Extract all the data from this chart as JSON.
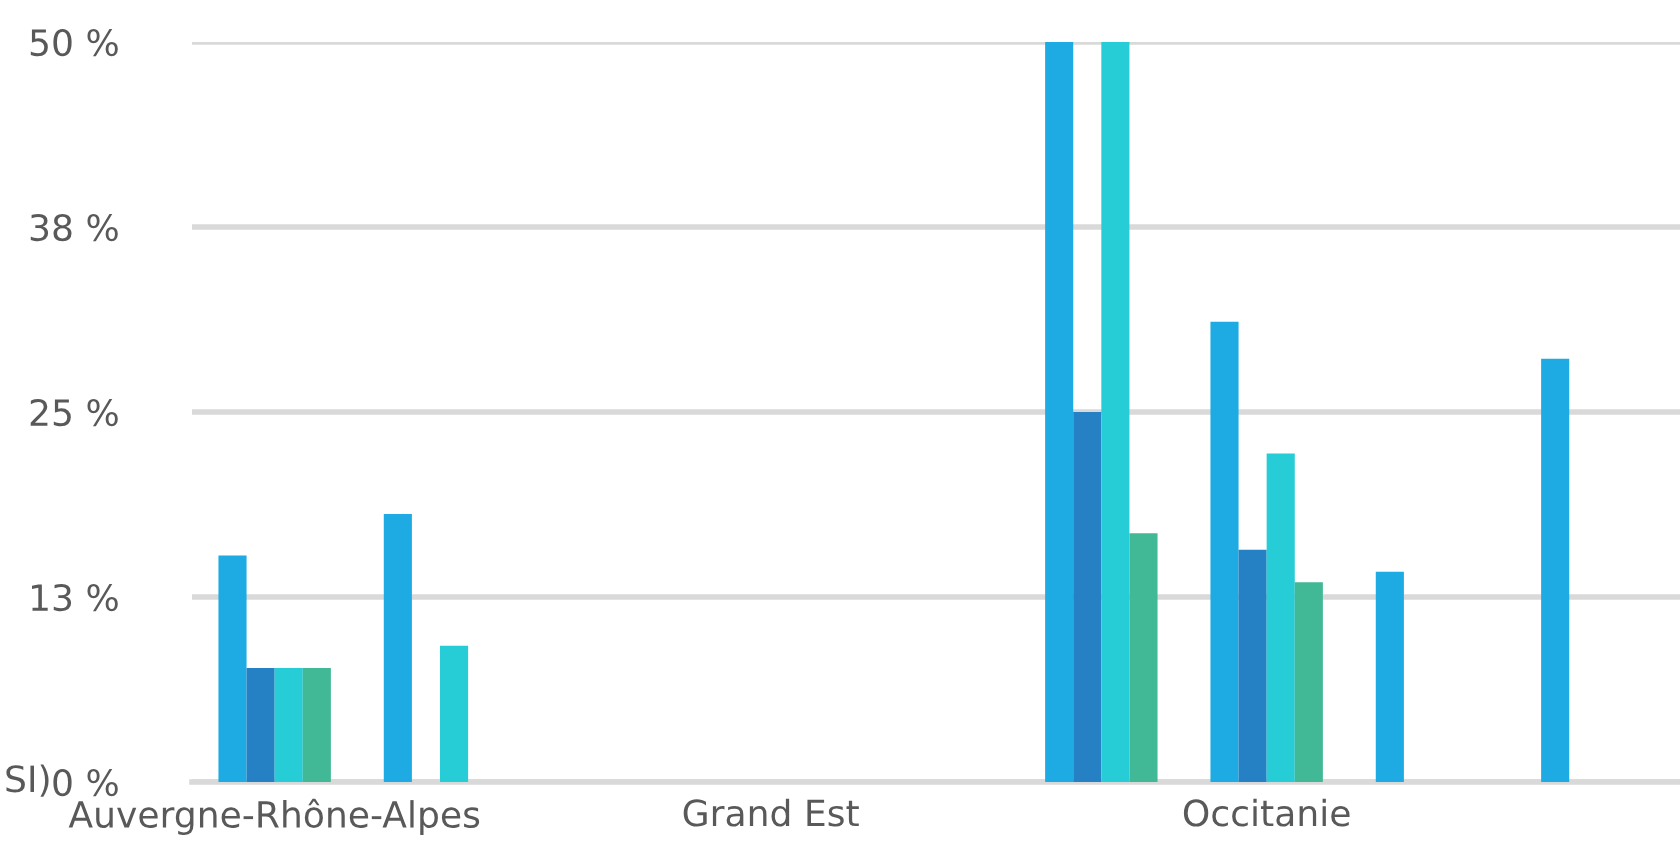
{
  "chart_data": {
    "type": "bar",
    "categories": [
      "Auvergne-Rhône-Alpes",
      null,
      null,
      "Grand Est",
      null,
      null,
      "Occitanie",
      null,
      null
    ],
    "series": [
      {
        "color": "#1eaae2",
        "values": [
          15.3,
          18.1,
          null,
          null,
          null,
          50,
          31.1,
          14.2,
          28.6
        ]
      },
      {
        "color": "#2581c4",
        "values": [
          7.7,
          null,
          null,
          null,
          null,
          25,
          15.7,
          null,
          null
        ]
      },
      {
        "color": "#26ccd6",
        "values": [
          7.7,
          9.2,
          null,
          null,
          null,
          50,
          22.2,
          null,
          null
        ]
      },
      {
        "color": "#42b996",
        "values": [
          7.7,
          null,
          null,
          null,
          null,
          16.8,
          13.5,
          null,
          null
        ]
      }
    ],
    "ylim": [
      0,
      50
    ],
    "yticks": [
      {
        "value": 0,
        "label": "0 %"
      },
      {
        "value": 12.5,
        "label": "13 %"
      },
      {
        "value": 25,
        "label": "25 %"
      },
      {
        "value": 37.5,
        "label": "38 %"
      },
      {
        "value": 50,
        "label": "50 %"
      }
    ],
    "grid": "y",
    "legend": false,
    "annotations": [
      "SI)"
    ]
  }
}
